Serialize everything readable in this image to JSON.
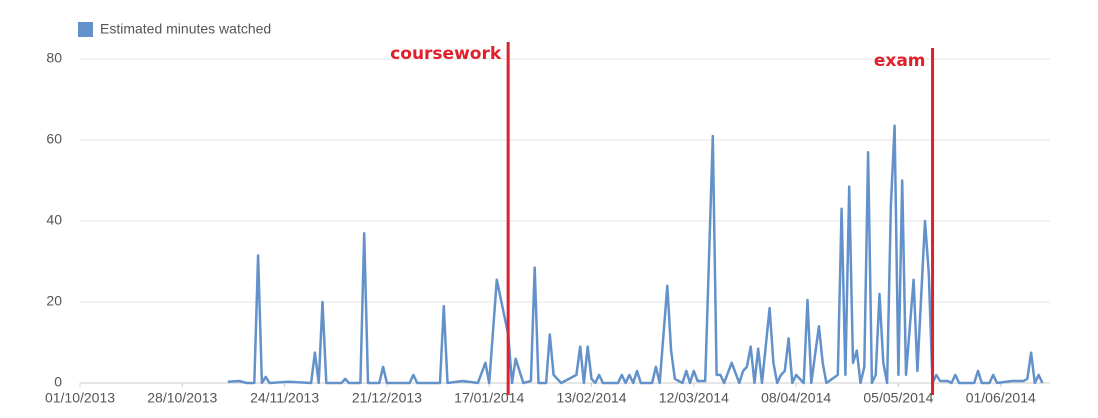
{
  "chart_data": {
    "type": "line",
    "legend": "Estimated minutes watched",
    "series": [
      {
        "name": "Estimated minutes watched",
        "color": "#6391c9",
        "x": [
          "09/11/2013",
          "12/11/2013",
          "14/11/2013",
          "16/11/2013",
          "17/11/2013",
          "18/11/2013",
          "19/11/2013",
          "20/11/2013",
          "25/11/2013",
          "01/12/2013",
          "02/12/2013",
          "03/12/2013",
          "04/12/2013",
          "05/12/2013",
          "09/12/2013",
          "10/12/2013",
          "11/12/2013",
          "14/12/2013",
          "15/12/2013",
          "16/12/2013",
          "19/12/2013",
          "20/12/2013",
          "21/12/2013",
          "27/12/2013",
          "28/12/2013",
          "29/12/2013",
          "04/01/2014",
          "05/01/2014",
          "06/01/2014",
          "10/01/2014",
          "14/01/2014",
          "16/01/2014",
          "17/01/2014",
          "19/01/2014",
          "22/01/2014",
          "23/01/2014",
          "24/01/2014",
          "26/01/2014",
          "28/01/2014",
          "29/01/2014",
          "30/01/2014",
          "01/02/2014",
          "02/02/2014",
          "03/02/2014",
          "05/02/2014",
          "09/02/2014",
          "10/02/2014",
          "11/02/2014",
          "12/02/2014",
          "13/02/2014",
          "14/02/2014",
          "15/02/2014",
          "16/02/2014",
          "20/02/2014",
          "21/02/2014",
          "22/02/2014",
          "23/02/2014",
          "24/02/2014",
          "25/02/2014",
          "26/02/2014",
          "01/03/2014",
          "02/03/2014",
          "03/03/2014",
          "05/03/2014",
          "06/03/2014",
          "07/03/2014",
          "09/03/2014",
          "10/03/2014",
          "11/03/2014",
          "12/03/2014",
          "13/03/2014",
          "15/03/2014",
          "17/03/2014",
          "18/03/2014",
          "19/03/2014",
          "20/03/2014",
          "22/03/2014",
          "24/03/2014",
          "25/03/2014",
          "26/03/2014",
          "27/03/2014",
          "28/03/2014",
          "29/03/2014",
          "30/03/2014",
          "01/04/2014",
          "02/04/2014",
          "03/04/2014",
          "04/04/2014",
          "05/04/2014",
          "06/04/2014",
          "07/04/2014",
          "08/04/2014",
          "10/04/2014",
          "11/04/2014",
          "12/04/2014",
          "14/04/2014",
          "15/04/2014",
          "16/04/2014",
          "19/04/2014",
          "20/04/2014",
          "21/04/2014",
          "22/04/2014",
          "23/04/2014",
          "24/04/2014",
          "25/04/2014",
          "26/04/2014",
          "27/04/2014",
          "28/04/2014",
          "29/04/2014",
          "30/04/2014",
          "01/05/2014",
          "02/05/2014",
          "03/05/2014",
          "04/05/2014",
          "05/05/2014",
          "06/05/2014",
          "07/05/2014",
          "09/05/2014",
          "10/05/2014",
          "12/05/2014",
          "13/05/2014",
          "14/05/2014",
          "15/05/2014",
          "16/05/2014",
          "18/05/2014",
          "19/05/2014",
          "20/05/2014",
          "21/05/2014",
          "25/05/2014",
          "26/05/2014",
          "27/05/2014",
          "29/05/2014",
          "30/05/2014",
          "31/05/2014",
          "04/06/2014",
          "06/06/2014",
          "07/06/2014",
          "08/06/2014",
          "09/06/2014",
          "10/06/2014",
          "11/06/2014",
          "12/06/2014"
        ],
        "values": [
          0.3,
          0.5,
          0,
          0,
          31.5,
          0,
          1.5,
          0,
          0.3,
          0,
          7.5,
          0,
          20,
          0,
          0,
          1,
          0,
          0,
          37,
          0,
          0,
          4,
          0,
          0,
          2,
          0,
          0,
          19,
          0,
          0.5,
          0,
          5,
          0,
          25.5,
          12,
          0,
          6,
          0,
          0.5,
          28.5,
          0,
          0,
          12,
          2,
          0,
          2,
          9,
          0,
          9,
          1,
          0,
          2,
          0,
          0,
          2,
          0,
          2,
          0,
          3,
          0,
          0,
          4,
          0,
          24,
          8,
          1,
          0,
          3,
          0,
          3,
          0.5,
          0.5,
          61,
          2,
          2,
          0,
          5,
          0,
          3,
          4,
          9,
          0,
          8.5,
          0,
          18.5,
          5,
          0,
          2,
          3,
          11,
          0,
          2,
          0,
          20.5,
          0,
          14,
          5,
          0,
          2,
          43,
          2,
          48.5,
          5,
          8,
          0,
          4,
          57,
          0,
          2,
          22,
          5,
          0,
          44,
          63.5,
          2,
          50,
          2,
          25.5,
          3,
          40,
          27,
          0,
          2,
          0.5,
          0.5,
          0,
          2,
          0,
          0,
          3,
          0,
          0,
          2,
          0,
          0.5,
          0.5,
          0.5,
          1,
          7.5,
          0,
          2,
          0
        ]
      }
    ],
    "xlim": [
      "01/10/2013",
      "14/06/2014"
    ],
    "xticks": [
      "01/10/2013",
      "28/10/2013",
      "24/11/2013",
      "21/12/2013",
      "17/01/2014",
      "13/02/2014",
      "12/03/2014",
      "08/04/2014",
      "05/05/2014",
      "01/06/2014"
    ],
    "ylim": [
      0,
      80
    ],
    "yticks": [
      0,
      20,
      40,
      60,
      80
    ],
    "grid": true,
    "annotations": [
      {
        "text": "coursework",
        "x": "22/01/2014",
        "color": "#e0202a"
      },
      {
        "text": "exam",
        "x": "14/05/2014",
        "color": "#e0202a"
      }
    ]
  }
}
